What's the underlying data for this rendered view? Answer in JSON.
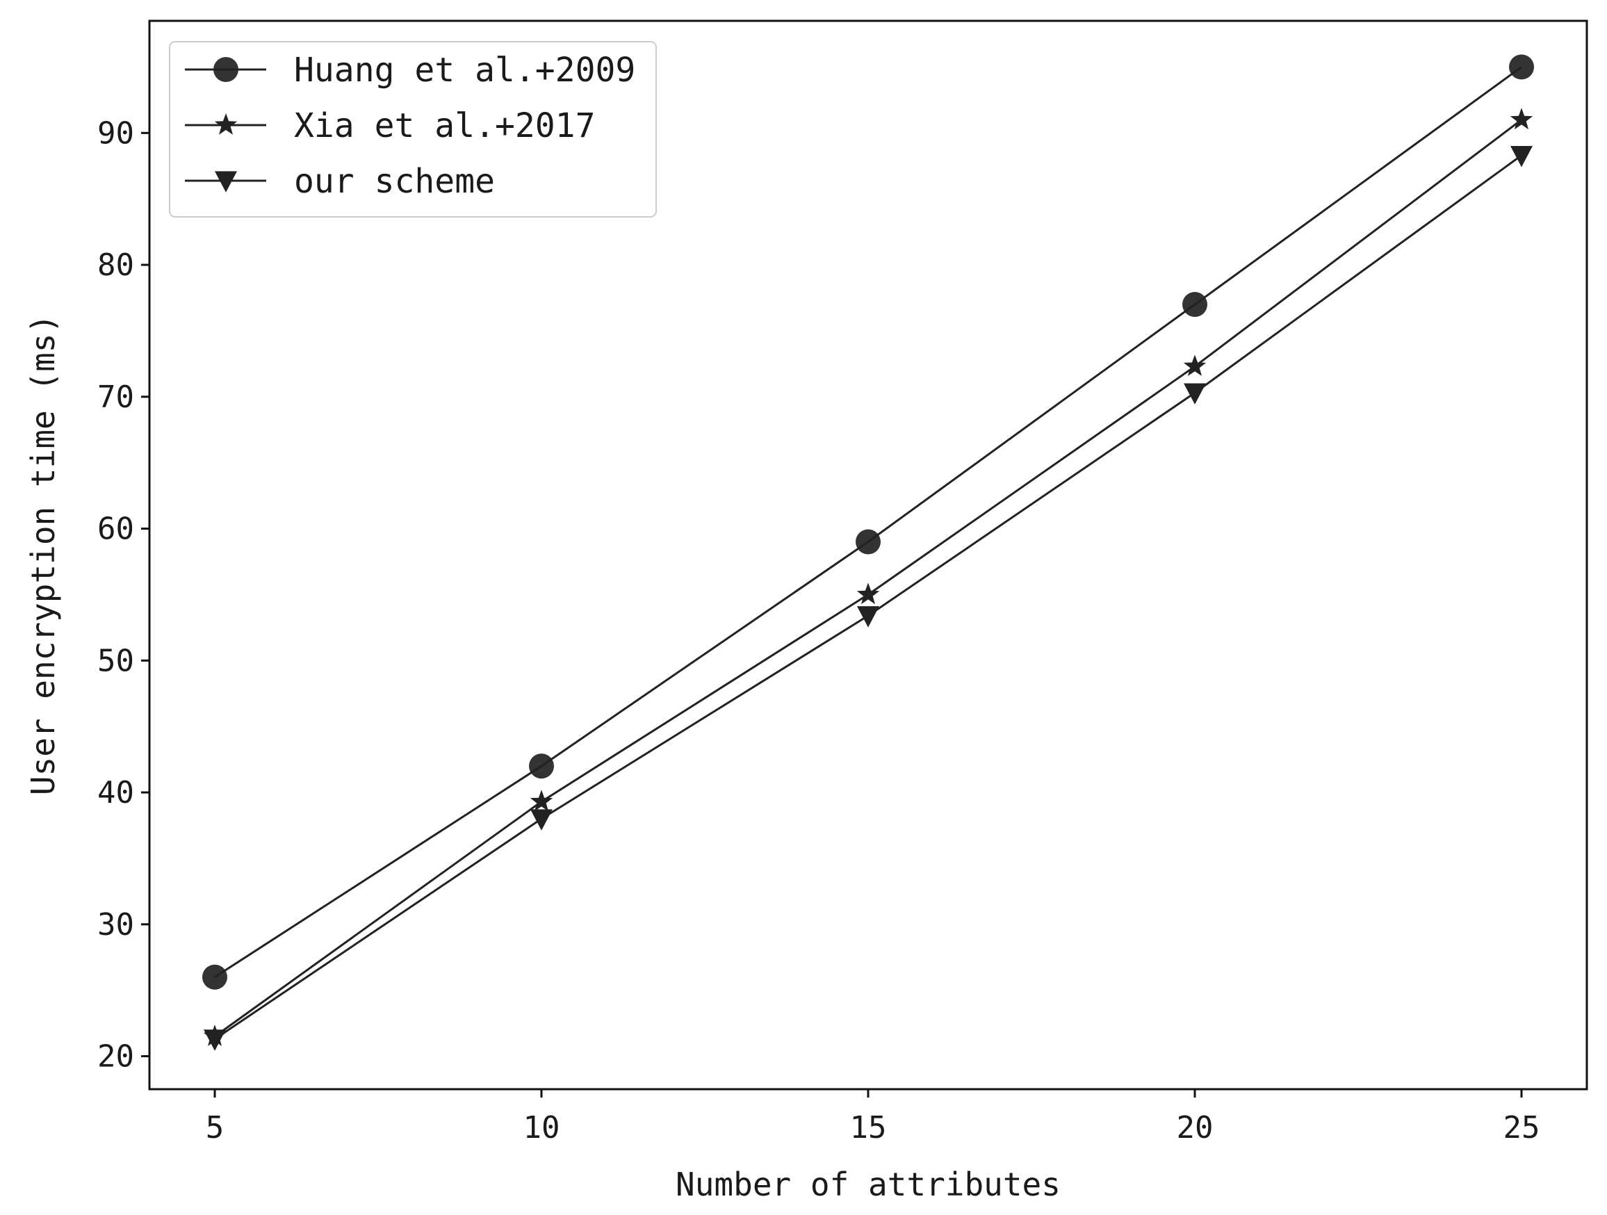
{
  "chart_data": {
    "type": "line",
    "title": "",
    "xlabel": "Number of attributes",
    "ylabel": "User encryption time (ms)",
    "x": [
      5,
      10,
      15,
      20,
      25
    ],
    "xlim": [
      4,
      26
    ],
    "ylim": [
      17.5,
      98.5
    ],
    "xticks": [
      5,
      10,
      15,
      20,
      25
    ],
    "yticks": [
      20,
      30,
      40,
      50,
      60,
      70,
      80,
      90
    ],
    "grid": false,
    "legend_position": "upper-left",
    "series": [
      {
        "name": "Huang et al.+2009",
        "marker": "circle",
        "color": "#222222",
        "values": [
          26,
          42,
          59,
          77,
          95
        ]
      },
      {
        "name": "Xia et al.+2017",
        "marker": "star",
        "color": "#222222",
        "values": [
          21.5,
          39.3,
          55,
          72.3,
          91
        ]
      },
      {
        "name": "our scheme",
        "marker": "triangle-down",
        "color": "#222222",
        "values": [
          21.3,
          38,
          53.4,
          70.3,
          88.3
        ]
      }
    ]
  }
}
